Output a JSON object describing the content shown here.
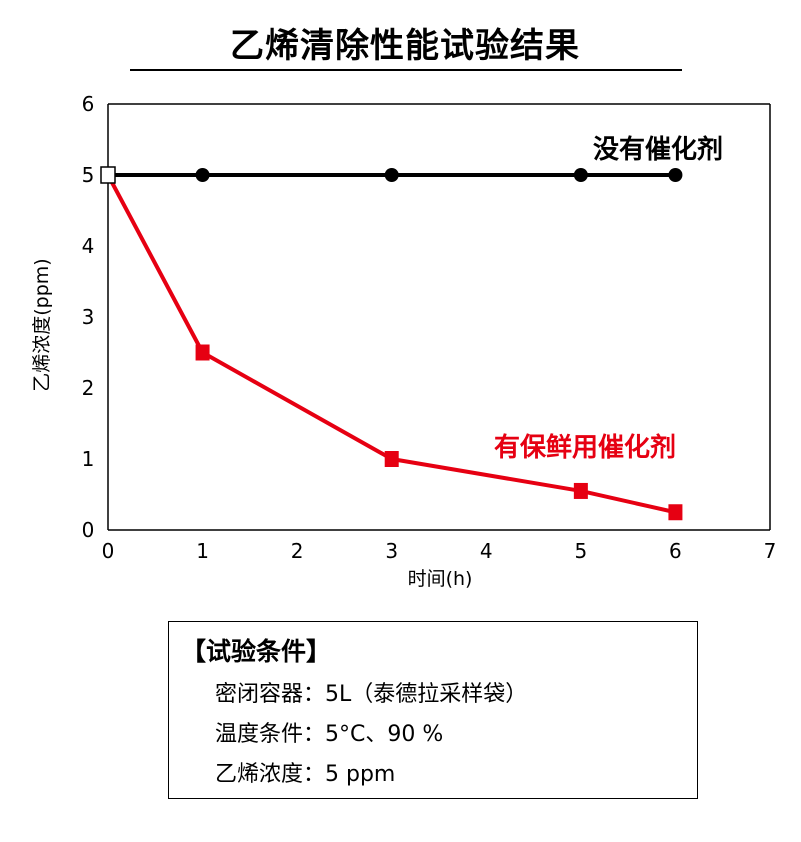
{
  "title": "乙烯清除性能试验结果",
  "chart_data": {
    "type": "line",
    "title": "乙烯清除性能试验结果",
    "xlabel": "时间(h)",
    "ylabel": "乙烯浓度(ppm)",
    "xlim": [
      0,
      7
    ],
    "ylim": [
      0,
      6
    ],
    "x_ticks": [
      "0",
      "1",
      "2",
      "3",
      "4",
      "5",
      "6",
      "7"
    ],
    "y_ticks": [
      "0",
      "1",
      "2",
      "3",
      "4",
      "5",
      "6"
    ],
    "grid": false,
    "series": [
      {
        "name": "没有催化剂",
        "color": "#000000",
        "marker": "circle",
        "x": [
          0,
          1,
          3,
          5,
          6
        ],
        "y": [
          5,
          5,
          5,
          5,
          5
        ]
      },
      {
        "name": "有保鲜用催化剂",
        "color": "#e60012",
        "marker": "square",
        "x": [
          0,
          1,
          3,
          5,
          6
        ],
        "y": [
          5,
          2.5,
          1.0,
          0.55,
          0.25
        ]
      }
    ]
  },
  "conditions": {
    "heading": "【试验条件】",
    "lines": [
      "密闭容器：5L（泰德拉采样袋）",
      "温度条件：5°C、90 %",
      "乙烯浓度：5 ppm"
    ]
  }
}
